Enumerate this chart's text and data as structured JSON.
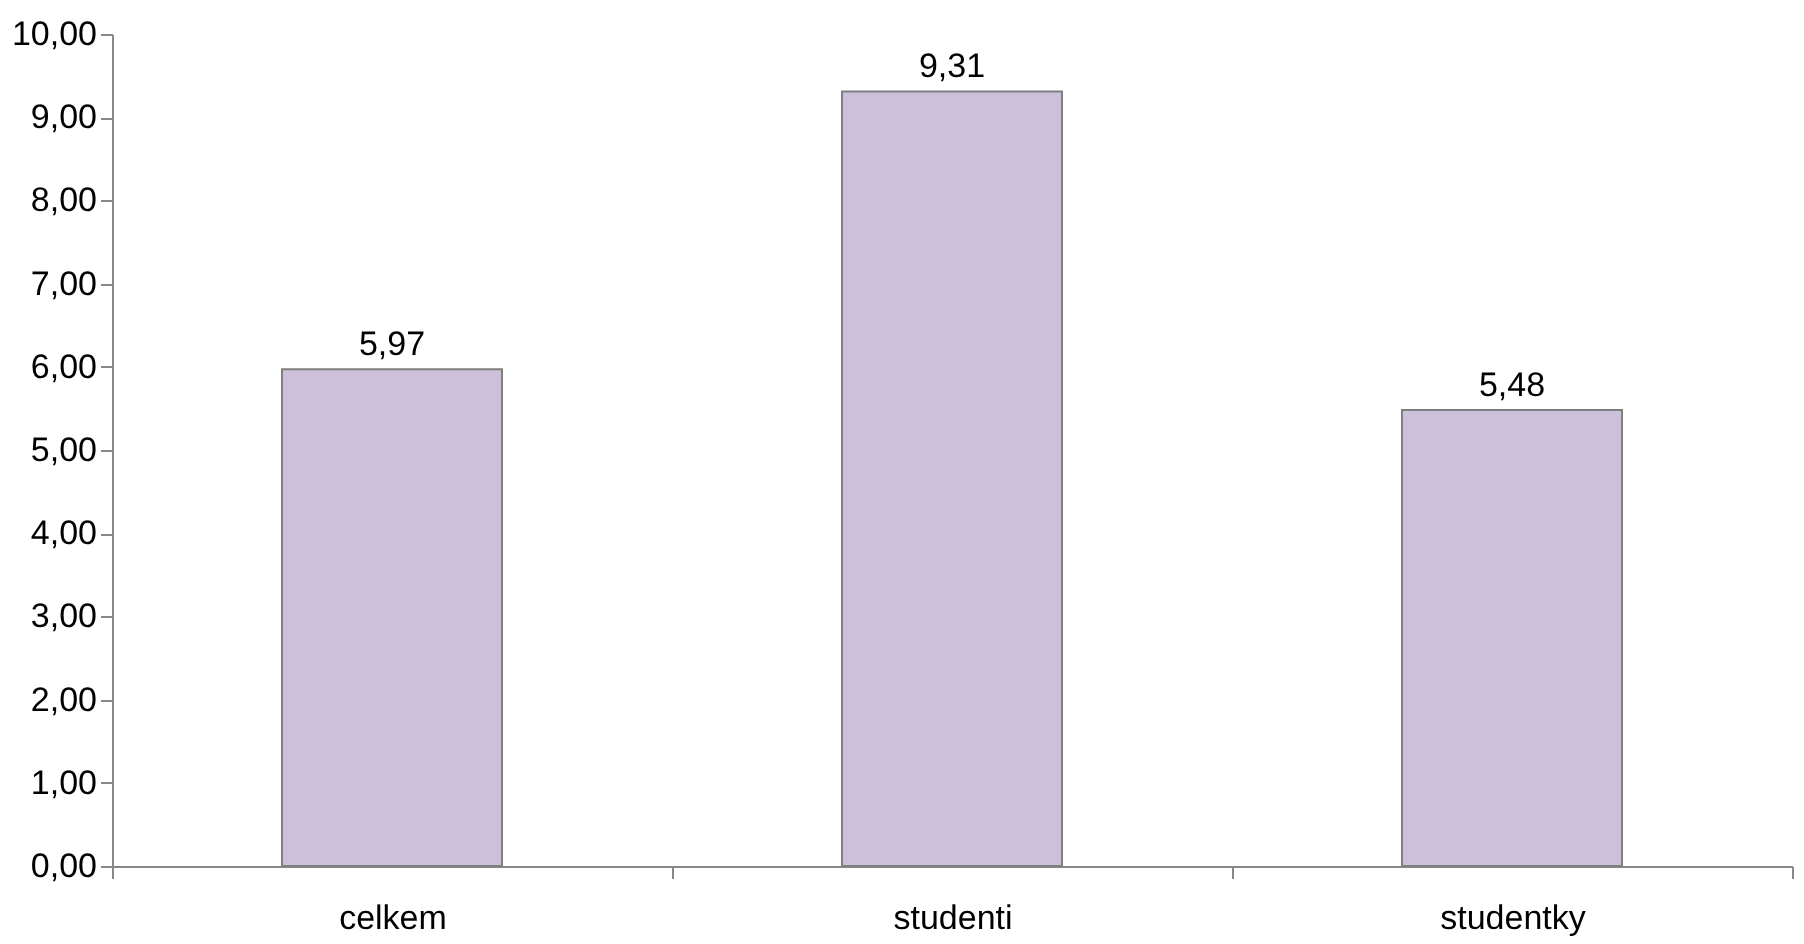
{
  "chart_data": {
    "type": "bar",
    "categories": [
      "celkem",
      "studenti",
      "studentky"
    ],
    "values": [
      5.97,
      9.31,
      5.48
    ],
    "value_labels": [
      "5,97",
      "9,31",
      "5,48"
    ],
    "color": "#ccc0da",
    "ylim": [
      0,
      10
    ],
    "yticks": [
      {
        "value": 0,
        "label": "0,00"
      },
      {
        "value": 1,
        "label": "1,00"
      },
      {
        "value": 2,
        "label": "2,00"
      },
      {
        "value": 3,
        "label": "3,00"
      },
      {
        "value": 4,
        "label": "4,00"
      },
      {
        "value": 5,
        "label": "5,00"
      },
      {
        "value": 6,
        "label": "6,00"
      },
      {
        "value": 7,
        "label": "7,00"
      },
      {
        "value": 8,
        "label": "8,00"
      },
      {
        "value": 9,
        "label": "9,00"
      },
      {
        "value": 10,
        "label": "10,00"
      }
    ],
    "grid": false
  }
}
